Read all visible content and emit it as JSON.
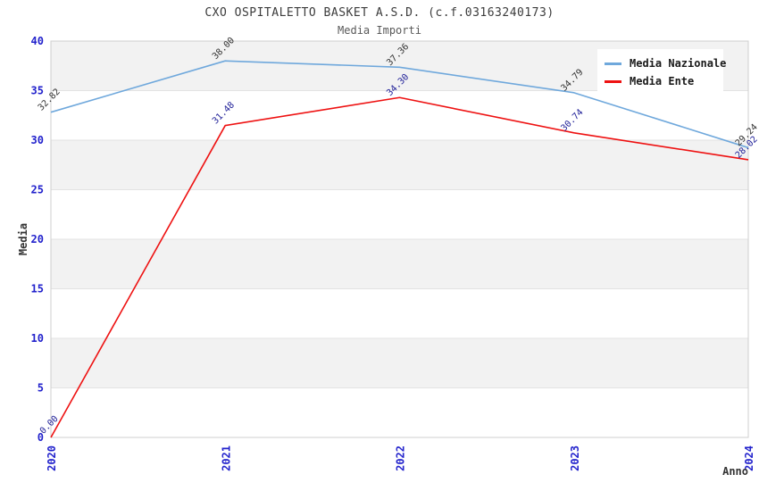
{
  "chart_data": {
    "type": "line",
    "title": "CXO OSPITALETTO BASKET A.S.D. (c.f.03163240173)",
    "subtitle": "Media Importi",
    "xlabel": "Anno",
    "ylabel": "Media",
    "categories": [
      "2020",
      "2021",
      "2022",
      "2023",
      "2024"
    ],
    "series": [
      {
        "name": "Media Nazionale",
        "color": "#6fa8dc",
        "label_color": "#333333",
        "values": [
          32.82,
          38.0,
          37.36,
          34.79,
          29.24
        ]
      },
      {
        "name": "Media Ente",
        "color": "#ee1111",
        "label_color": "#222299",
        "values": [
          0.0,
          31.48,
          34.3,
          30.74,
          28.02
        ]
      }
    ],
    "ylim": [
      0,
      40
    ],
    "ytick_step": 5,
    "yticks": [
      0,
      5,
      10,
      15,
      20,
      25,
      30,
      35,
      40
    ],
    "grid": "horizontal-bands",
    "legend_position": "top-right",
    "colors": {
      "band": "#f2f2f2",
      "grid": "#e3e3e3",
      "border": "#cfcfcf",
      "tick_label": "#2222cc",
      "axis_label": "#333333",
      "title": "#3c3c3c",
      "subtitle": "#595959"
    }
  }
}
